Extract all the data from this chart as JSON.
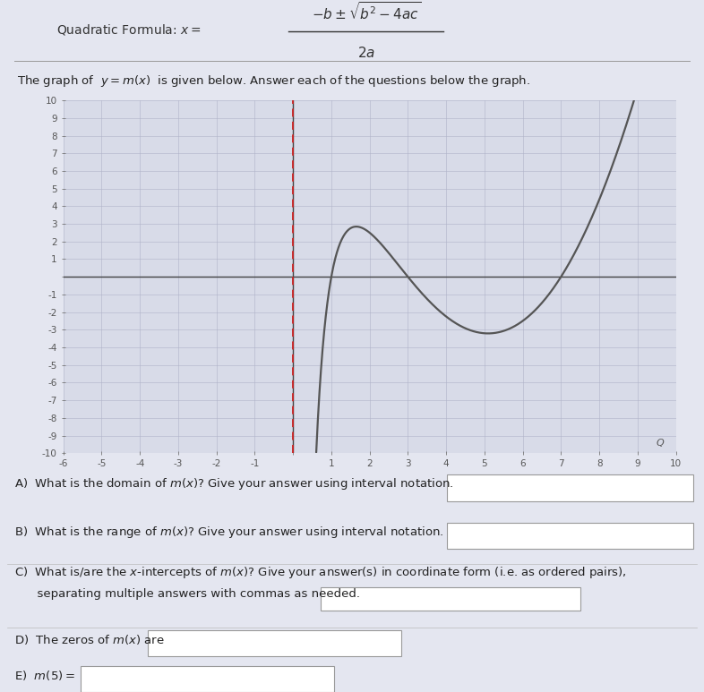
{
  "background_color": "#e4e6f0",
  "graph_bg_color": "#d8dbe8",
  "formula_text": "$-b \\pm \\sqrt{b^2 - 4ac}$",
  "formula_denom": "$2a$",
  "formula_prefix": "Quadratic Formula:  $x=$",
  "graph_title": "The graph of  $y=m(x)$  is given below. Answer each of the questions below the graph.",
  "x_range": [
    -6,
    10
  ],
  "y_range": [
    -10,
    10
  ],
  "curve_color": "#555555",
  "dashed_color": "#cc2222",
  "grid_color_major": "#b0b3c8",
  "grid_color_minor": "#c8cad8",
  "axis_color": "#444444",
  "tick_label_color": "#555555",
  "tick_fontsize": 7.5,
  "q_fontsize": 9.5,
  "q_label_color": "#222222"
}
